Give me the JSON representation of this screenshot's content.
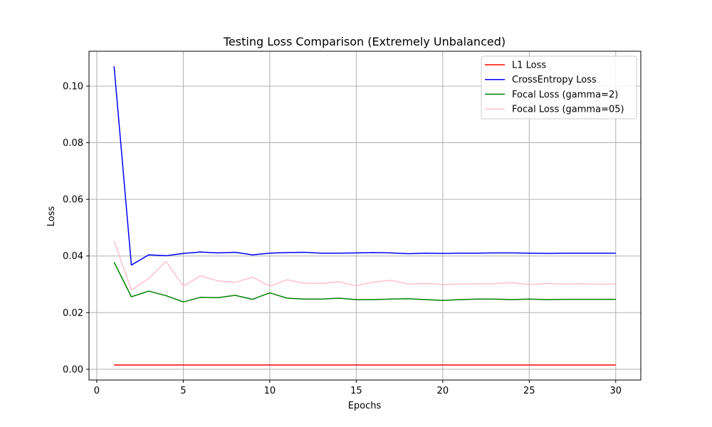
{
  "chart_data": {
    "type": "line",
    "title": "Testing Loss Comparison (Extremely Unbalanced)",
    "xlabel": "Epochs",
    "ylabel": "Loss",
    "xlim": [
      -0.45,
      31.45
    ],
    "ylim": [
      -0.0038,
      0.1123
    ],
    "xticks": [
      0,
      5,
      10,
      15,
      20,
      25,
      30
    ],
    "yticks": [
      0.0,
      0.02,
      0.04,
      0.06,
      0.08,
      0.1
    ],
    "ytick_labels": [
      "0.00",
      "0.02",
      "0.04",
      "0.06",
      "0.08",
      "0.10"
    ],
    "grid": true,
    "legend_position": "top-right",
    "x": [
      1,
      2,
      3,
      4,
      5,
      6,
      7,
      8,
      9,
      10,
      11,
      12,
      13,
      14,
      15,
      16,
      17,
      18,
      19,
      20,
      21,
      22,
      23,
      24,
      25,
      26,
      27,
      28,
      29,
      30
    ],
    "series": [
      {
        "name": "L1 Loss",
        "color": "#ff0000",
        "values": [
          0.0015,
          0.0015,
          0.0015,
          0.0015,
          0.0015,
          0.0015,
          0.0015,
          0.0015,
          0.0015,
          0.0015,
          0.0015,
          0.0015,
          0.0015,
          0.0015,
          0.0015,
          0.0015,
          0.0015,
          0.0015,
          0.0015,
          0.0015,
          0.0015,
          0.0015,
          0.0015,
          0.0015,
          0.0015,
          0.0015,
          0.0015,
          0.0015,
          0.0015,
          0.0015
        ]
      },
      {
        "name": "CrossEntropy Loss",
        "color": "#0000ff",
        "values": [
          0.107,
          0.0368,
          0.0404,
          0.0401,
          0.0409,
          0.0414,
          0.0411,
          0.0413,
          0.0404,
          0.041,
          0.0412,
          0.0413,
          0.041,
          0.041,
          0.0411,
          0.0412,
          0.0411,
          0.0408,
          0.041,
          0.0409,
          0.041,
          0.041,
          0.0411,
          0.0411,
          0.041,
          0.0409,
          0.041,
          0.041,
          0.041,
          0.041
        ]
      },
      {
        "name": "Focal Loss (gamma=2)",
        "color": "#008000",
        "values": [
          0.0378,
          0.0256,
          0.0276,
          0.026,
          0.0238,
          0.0254,
          0.0253,
          0.0261,
          0.0247,
          0.027,
          0.0251,
          0.0248,
          0.0248,
          0.0251,
          0.0246,
          0.0246,
          0.0248,
          0.0249,
          0.0246,
          0.0243,
          0.0246,
          0.0248,
          0.0248,
          0.0246,
          0.0248,
          0.0246,
          0.0247,
          0.0247,
          0.0247,
          0.0247
        ]
      },
      {
        "name": "Focal Loss (gamma=05)",
        "color": "#ffc0cb",
        "values": [
          0.0453,
          0.028,
          0.032,
          0.0381,
          0.0294,
          0.033,
          0.0312,
          0.0307,
          0.0325,
          0.0294,
          0.0316,
          0.0304,
          0.0303,
          0.0309,
          0.0295,
          0.0308,
          0.0314,
          0.0301,
          0.0303,
          0.0299,
          0.0301,
          0.0302,
          0.0302,
          0.0306,
          0.0299,
          0.0303,
          0.0301,
          0.0302,
          0.03,
          0.0301
        ]
      }
    ]
  }
}
